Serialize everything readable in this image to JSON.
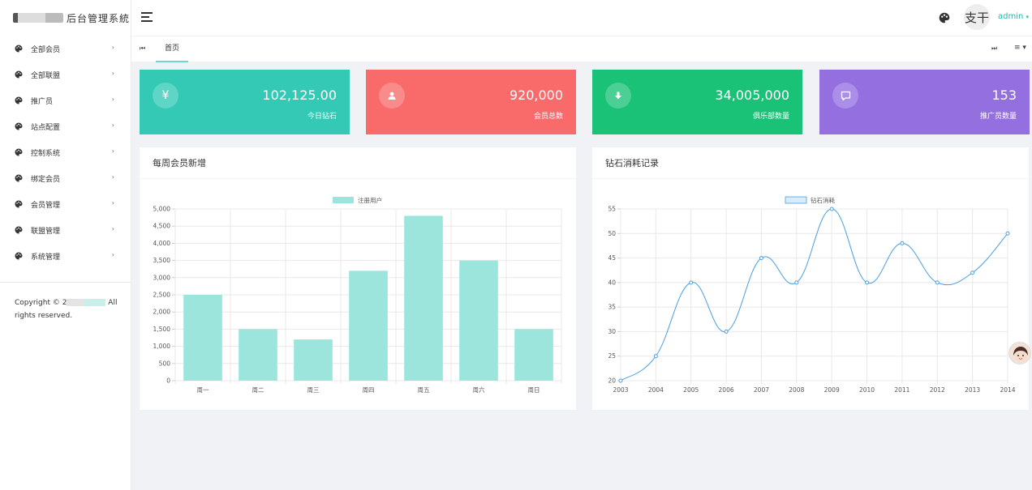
{
  "brand": {
    "title": "后台管理系統"
  },
  "sidebar": {
    "items": [
      {
        "label": "全部会员"
      },
      {
        "label": "全部联盟"
      },
      {
        "label": "推广员"
      },
      {
        "label": "站点配置"
      },
      {
        "label": "控制系统"
      },
      {
        "label": "绑定会员"
      },
      {
        "label": "会员管理"
      },
      {
        "label": "联盟管理"
      },
      {
        "label": "系统管理"
      }
    ],
    "copyright_prefix": "Copyright © 2",
    "copyright_mid": " All",
    "copyright_suffix": "rights reserved."
  },
  "header": {
    "user": "admin",
    "avatar_text": "支干",
    "icons": {
      "menu": "hamburger-icon",
      "theme": "palette-icon",
      "caret": "caret-down-icon"
    }
  },
  "tabs": {
    "items": [
      {
        "label": "首页"
      }
    ],
    "prev_glyph": "⏮",
    "next_glyph": "⏭",
    "menu_glyph": "≡ ▾"
  },
  "stats": [
    {
      "value": "102,125.00",
      "label": "今日钻石",
      "icon": "yen-icon",
      "glyph": "¥",
      "color": "#33c9b5"
    },
    {
      "value": "920,000",
      "label": "会员总数",
      "icon": "user-icon",
      "glyph": "",
      "color": "#f96b6b"
    },
    {
      "value": "34,005,000",
      "label": "俱乐部数量",
      "icon": "download-icon",
      "glyph": "",
      "color": "#19c277"
    },
    {
      "value": "153",
      "label": "推广员数量",
      "icon": "message-icon",
      "glyph": "",
      "color": "#946fe0"
    }
  ],
  "panels": {
    "weekly": {
      "title": "每周会员新增"
    },
    "diamond": {
      "title": "钻石消耗记录"
    }
  },
  "chart_data": [
    {
      "type": "bar",
      "legend": "注册用户",
      "categories": [
        "周一",
        "周二",
        "周三",
        "周四",
        "周五",
        "周六",
        "周日"
      ],
      "series": [
        {
          "name": "注册用户",
          "values": [
            2500,
            1500,
            1200,
            3200,
            4800,
            3500,
            1500
          ]
        }
      ],
      "ylim": [
        0,
        5000
      ],
      "yticks": [
        0,
        500,
        1000,
        1500,
        2000,
        2500,
        3000,
        3500,
        4000,
        4500,
        5000
      ],
      "ytick_labels": [
        "0",
        "500",
        "1,000",
        "1,500",
        "2,000",
        "2,500",
        "3,000",
        "3,500",
        "4,000",
        "4,500",
        "5,000"
      ],
      "grid": true,
      "legend_position": "top",
      "colors": {
        "fill": "#9be5dd",
        "grid": "#e8e8e8"
      }
    },
    {
      "type": "line",
      "legend": "钻石消耗",
      "x": [
        2003,
        2004,
        2005,
        2006,
        2007,
        2008,
        2009,
        2010,
        2011,
        2012,
        2013,
        2014
      ],
      "series": [
        {
          "name": "钻石消耗",
          "values": [
            20,
            25,
            40,
            30,
            45,
            40,
            55,
            40,
            48,
            40,
            42,
            50
          ]
        }
      ],
      "ylim": [
        20,
        55
      ],
      "yticks": [
        20,
        25,
        30,
        35,
        40,
        45,
        50,
        55
      ],
      "grid": true,
      "smooth": true,
      "legend_position": "top",
      "colors": {
        "line": "#4a9fe0",
        "legend_fill": "#d8ecfa",
        "grid": "#e8e8e8"
      }
    }
  ]
}
